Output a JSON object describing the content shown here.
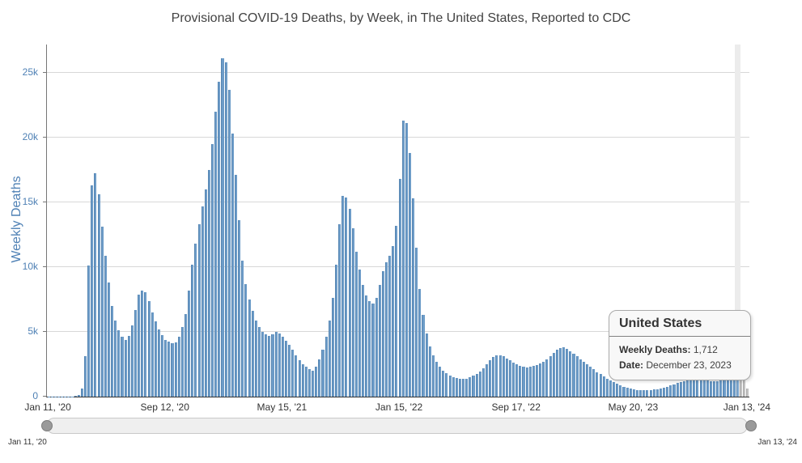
{
  "title": "Provisional COVID-19 Deaths, by Week, in The United States, Reported to CDC",
  "y_axis": {
    "title": "Weekly Deaths"
  },
  "tooltip": {
    "title": "United States",
    "rows": [
      {
        "label": "Weekly Deaths:",
        "value": "1,712"
      },
      {
        "label": "Date:",
        "value": "December 23, 2023"
      }
    ]
  },
  "navigator": {
    "range_start_label": "Jan 11, '20",
    "range_end_label": "Jan 13, '24"
  },
  "colors": {
    "bar": "#6d9cc8",
    "bar_border": "#5585b2",
    "bar_hover": "#86aed4",
    "bar_incomplete": "#c2c2c2",
    "bar_incomplete_border": "#a9a9a9",
    "crosshair": "#ececec",
    "grid": "#d8d8d8",
    "axis_blue": "#4f81b5",
    "text_dark": "#333333"
  },
  "chart_data": {
    "type": "bar",
    "title": "Provisional COVID-19 Deaths, by Week, in The United States, Reported to CDC",
    "xlabel": "",
    "ylabel": "Weekly Deaths",
    "x_start": "Jan 11, 2020",
    "x_end": "Jan 13, 2024",
    "frequency": "weekly",
    "ylim_thousands": [
      0,
      27
    ],
    "y_ticks_thousands": [
      0,
      5,
      10,
      15,
      20,
      25
    ],
    "y_tick_labels": [
      "0",
      "5k",
      "10k",
      "15k",
      "20k",
      "25k"
    ],
    "x_tick_labels": [
      "Jan 11, '20",
      "Sep 12, '20",
      "May 15, '21",
      "Jan 15, '22",
      "Sep 17, '22",
      "May 20, '23",
      "Jan 13, '24"
    ],
    "x_tick_weeks": [
      0,
      35,
      70,
      105,
      140,
      175,
      209
    ],
    "grid": "horizontal-only",
    "legend": "none",
    "values_thousands": [
      0.01,
      0.01,
      0.01,
      0.01,
      0.01,
      0.01,
      0.01,
      0.02,
      0.06,
      0.12,
      0.6,
      3.1,
      10.1,
      16.3,
      17.25,
      15.6,
      13.1,
      10.9,
      8.8,
      7.0,
      5.9,
      5.1,
      4.6,
      4.4,
      4.7,
      5.5,
      6.7,
      7.9,
      8.2,
      8.05,
      7.4,
      6.5,
      5.8,
      5.2,
      4.75,
      4.4,
      4.25,
      4.15,
      4.2,
      4.6,
      5.4,
      6.4,
      8.2,
      10.2,
      11.8,
      13.3,
      14.7,
      16.0,
      17.5,
      19.5,
      22.0,
      24.3,
      26.1,
      25.8,
      23.7,
      20.3,
      17.1,
      13.6,
      10.5,
      8.7,
      7.5,
      6.6,
      5.9,
      5.4,
      5.0,
      4.8,
      4.7,
      4.8,
      5.0,
      4.9,
      4.6,
      4.3,
      4.0,
      3.6,
      3.2,
      2.8,
      2.5,
      2.3,
      2.1,
      2.0,
      2.3,
      2.9,
      3.6,
      4.6,
      5.9,
      7.6,
      10.2,
      13.3,
      15.5,
      15.4,
      14.5,
      13.0,
      11.2,
      9.8,
      8.6,
      7.8,
      7.4,
      7.2,
      7.6,
      8.6,
      9.7,
      10.4,
      10.9,
      11.6,
      13.2,
      16.8,
      21.3,
      21.1,
      18.8,
      15.3,
      11.5,
      8.3,
      6.3,
      4.9,
      3.9,
      3.2,
      2.7,
      2.3,
      2.0,
      1.8,
      1.65,
      1.52,
      1.44,
      1.38,
      1.36,
      1.4,
      1.48,
      1.6,
      1.75,
      1.95,
      2.2,
      2.5,
      2.8,
      3.05,
      3.18,
      3.2,
      3.1,
      2.95,
      2.8,
      2.65,
      2.5,
      2.4,
      2.3,
      2.28,
      2.32,
      2.38,
      2.45,
      2.55,
      2.7,
      2.9,
      3.1,
      3.35,
      3.6,
      3.78,
      3.8,
      3.7,
      3.5,
      3.3,
      3.1,
      2.9,
      2.7,
      2.5,
      2.3,
      2.1,
      1.9,
      1.72,
      1.55,
      1.4,
      1.25,
      1.12,
      1.0,
      0.88,
      0.78,
      0.68,
      0.6,
      0.55,
      0.51,
      0.49,
      0.48,
      0.49,
      0.51,
      0.54,
      0.58,
      0.63,
      0.7,
      0.78,
      0.86,
      0.95,
      1.04,
      1.12,
      1.19,
      1.25,
      1.29,
      1.31,
      1.3,
      1.28,
      1.25,
      1.22,
      1.2,
      1.19,
      1.2,
      1.23,
      1.28,
      1.35,
      1.45,
      1.58,
      1.712,
      1.85,
      1.45,
      0.65
    ],
    "hovered_index": 206,
    "hovered_point": {
      "date": "December 23, 2023",
      "weekly_deaths": 1712
    },
    "incomplete_data_indices": [
      207,
      208,
      209
    ]
  }
}
